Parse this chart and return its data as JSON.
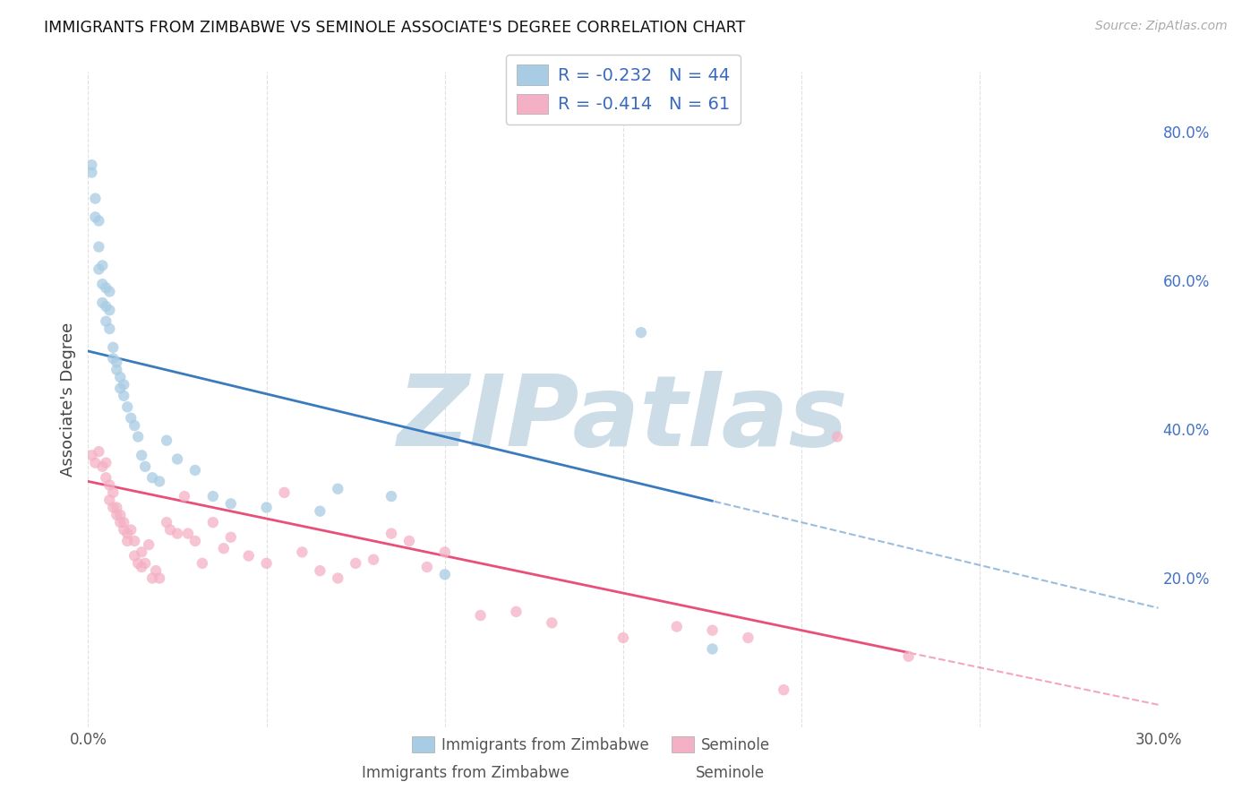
{
  "title": "IMMIGRANTS FROM ZIMBABWE VS SEMINOLE ASSOCIATE'S DEGREE CORRELATION CHART",
  "source": "Source: ZipAtlas.com",
  "ylabel": "Associate's Degree",
  "xlim": [
    0.0,
    0.3
  ],
  "ylim": [
    0.0,
    0.88
  ],
  "blue_R": -0.232,
  "blue_N": 44,
  "pink_R": -0.414,
  "pink_N": 61,
  "blue_color": "#a8cce4",
  "pink_color": "#f4b0c4",
  "blue_line_color": "#3a7bbf",
  "pink_line_color": "#e8507a",
  "dot_size": 80,
  "dot_alpha": 0.75,
  "blue_dots_x": [
    0.001,
    0.001,
    0.002,
    0.002,
    0.003,
    0.003,
    0.003,
    0.004,
    0.004,
    0.004,
    0.005,
    0.005,
    0.005,
    0.006,
    0.006,
    0.006,
    0.007,
    0.007,
    0.008,
    0.008,
    0.009,
    0.009,
    0.01,
    0.01,
    0.011,
    0.012,
    0.013,
    0.014,
    0.015,
    0.016,
    0.018,
    0.02,
    0.022,
    0.025,
    0.03,
    0.035,
    0.04,
    0.05,
    0.065,
    0.07,
    0.085,
    0.1,
    0.155,
    0.175
  ],
  "blue_dots_y": [
    0.745,
    0.755,
    0.71,
    0.685,
    0.68,
    0.645,
    0.615,
    0.62,
    0.595,
    0.57,
    0.59,
    0.565,
    0.545,
    0.585,
    0.56,
    0.535,
    0.51,
    0.495,
    0.49,
    0.48,
    0.47,
    0.455,
    0.46,
    0.445,
    0.43,
    0.415,
    0.405,
    0.39,
    0.365,
    0.35,
    0.335,
    0.33,
    0.385,
    0.36,
    0.345,
    0.31,
    0.3,
    0.295,
    0.29,
    0.32,
    0.31,
    0.205,
    0.53,
    0.105
  ],
  "pink_dots_x": [
    0.001,
    0.002,
    0.003,
    0.004,
    0.005,
    0.005,
    0.006,
    0.006,
    0.007,
    0.007,
    0.008,
    0.008,
    0.009,
    0.009,
    0.01,
    0.01,
    0.011,
    0.011,
    0.012,
    0.013,
    0.013,
    0.014,
    0.015,
    0.015,
    0.016,
    0.017,
    0.018,
    0.019,
    0.02,
    0.022,
    0.023,
    0.025,
    0.027,
    0.028,
    0.03,
    0.032,
    0.035,
    0.038,
    0.04,
    0.045,
    0.05,
    0.055,
    0.06,
    0.065,
    0.07,
    0.075,
    0.08,
    0.085,
    0.09,
    0.095,
    0.1,
    0.11,
    0.12,
    0.13,
    0.15,
    0.165,
    0.175,
    0.185,
    0.195,
    0.21,
    0.23
  ],
  "pink_dots_y": [
    0.365,
    0.355,
    0.37,
    0.35,
    0.355,
    0.335,
    0.325,
    0.305,
    0.315,
    0.295,
    0.285,
    0.295,
    0.275,
    0.285,
    0.265,
    0.275,
    0.26,
    0.25,
    0.265,
    0.25,
    0.23,
    0.22,
    0.235,
    0.215,
    0.22,
    0.245,
    0.2,
    0.21,
    0.2,
    0.275,
    0.265,
    0.26,
    0.31,
    0.26,
    0.25,
    0.22,
    0.275,
    0.24,
    0.255,
    0.23,
    0.22,
    0.315,
    0.235,
    0.21,
    0.2,
    0.22,
    0.225,
    0.26,
    0.25,
    0.215,
    0.235,
    0.15,
    0.155,
    0.14,
    0.12,
    0.135,
    0.13,
    0.12,
    0.05,
    0.39,
    0.095
  ],
  "legend_blue_label": "Immigrants from Zimbabwe",
  "legend_pink_label": "Seminole",
  "watermark_text": "ZIPatlas",
  "watermark_color": "#ccdde8",
  "background_color": "#ffffff",
  "grid_color": "#e0e0e0",
  "y_ticks_right": [
    0.2,
    0.4,
    0.6,
    0.8
  ],
  "y_tick_labels_right": [
    "20.0%",
    "40.0%",
    "60.0%",
    "80.0%"
  ],
  "x_tick_positions": [
    0.0,
    0.05,
    0.1,
    0.15,
    0.2,
    0.25,
    0.3
  ],
  "x_tick_labels": [
    "0.0%",
    "",
    "",
    "",
    "",
    "",
    "30.0%"
  ],
  "blue_line_intercept": 0.505,
  "blue_line_slope": -1.15,
  "blue_line_x_end": 0.175,
  "pink_line_intercept": 0.33,
  "pink_line_slope": -1.0,
  "pink_line_x_end": 0.23
}
